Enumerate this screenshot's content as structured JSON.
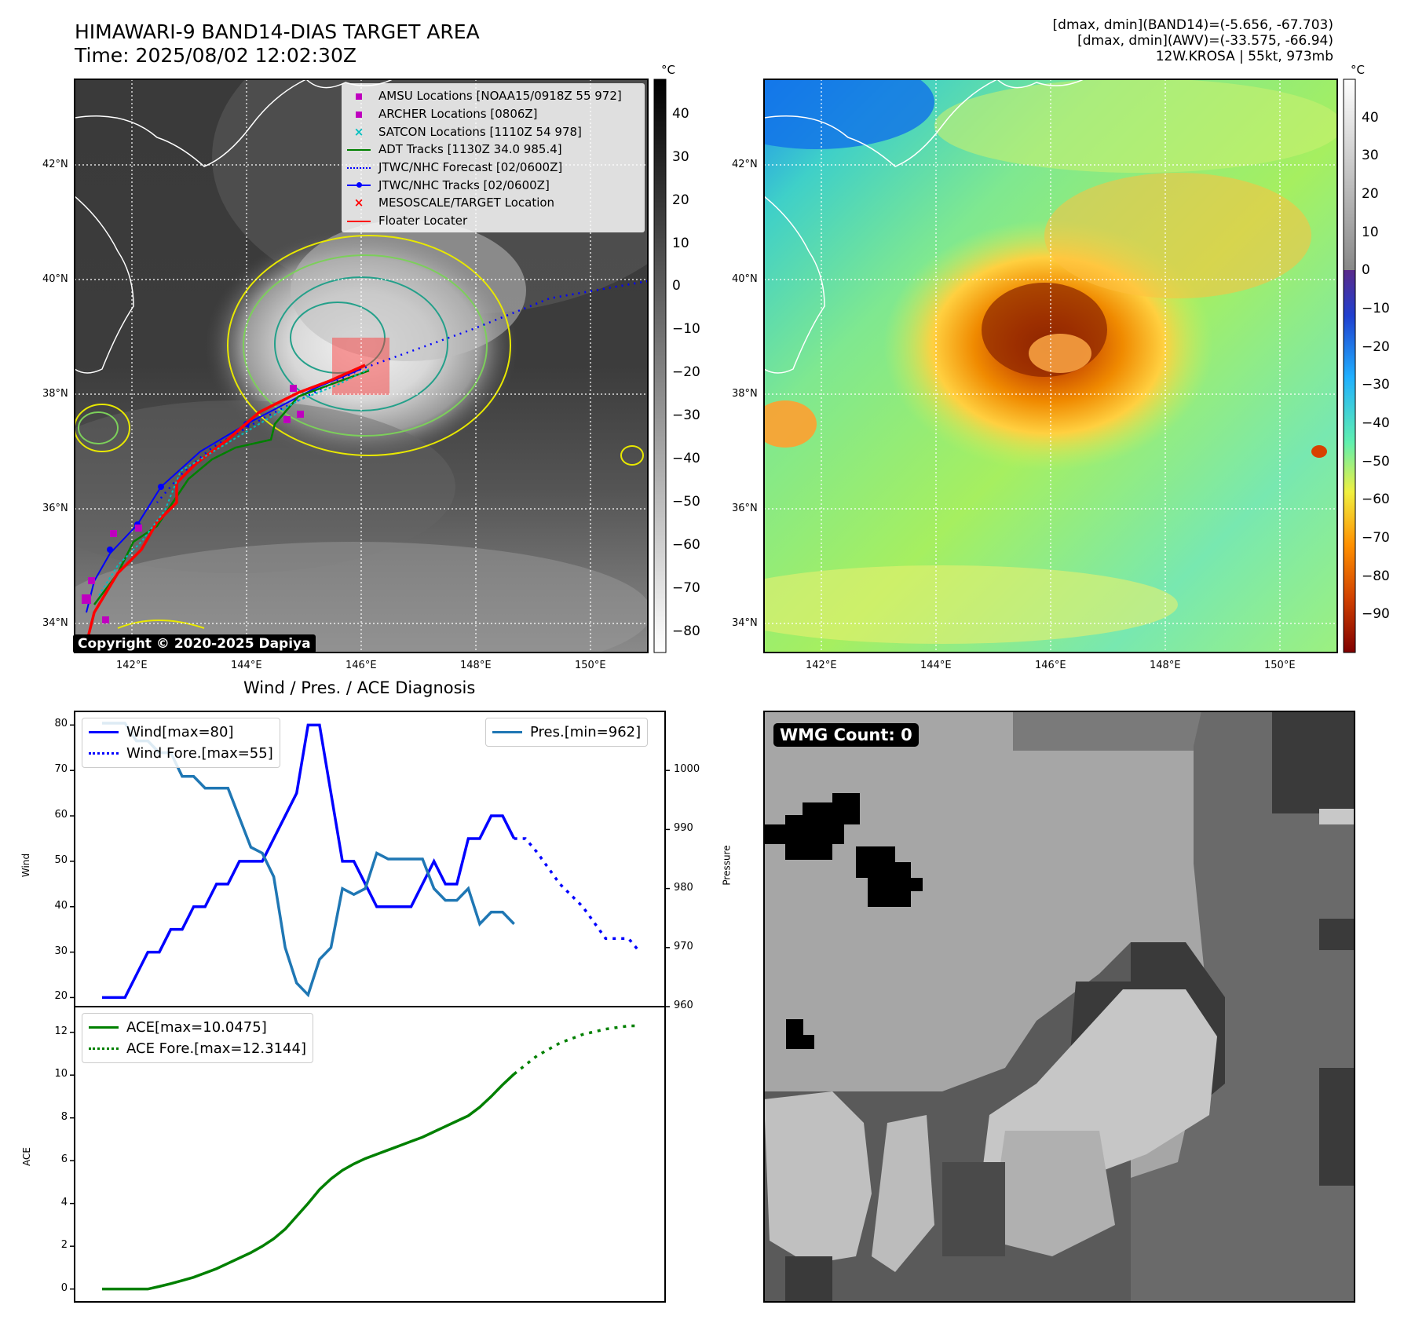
{
  "header": {
    "title": "HIMAWARI-9 BAND14-DIAS TARGET AREA",
    "time": "Time: 2025/08/02 12:02:30Z",
    "info_line1": "[dmax, dmin](BAND14)=(-5.656, -67.703)",
    "info_line2": "[dmax, dmin](AWV)=(-33.575, -66.94)",
    "info_line3": "12W.KROSA | 55kt, 973mb"
  },
  "maps": {
    "lat_labels": [
      "42°N",
      "40°N",
      "38°N",
      "36°N",
      "34°N"
    ],
    "lon_labels": [
      "142°E",
      "144°E",
      "146°E",
      "148°E",
      "150°E"
    ],
    "colorbar_unit": "°C",
    "left_colorbar_ticks": [
      "40",
      "30",
      "20",
      "10",
      "0",
      "−10",
      "−20",
      "−30",
      "−40",
      "−50",
      "−60",
      "−70",
      "−80"
    ],
    "right_colorbar_ticks": [
      "40",
      "30",
      "20",
      "10",
      "0",
      "−10",
      "−20",
      "−30",
      "−40",
      "−50",
      "−60",
      "−70",
      "−80",
      "−90"
    ],
    "copyright": "Copyright © 2020-2025 Dapiya",
    "legend": [
      {
        "label": "AMSU Locations [NOAA15/0918Z 55 972]",
        "color": "#bf00bf",
        "symbol": "square"
      },
      {
        "label": "ARCHER Locations [0806Z]",
        "color": "#bf00bf",
        "symbol": "square"
      },
      {
        "label": "SATCON Locations [1110Z 54 978]",
        "color": "#00bfbf",
        "symbol": "x"
      },
      {
        "label": "ADT Tracks [1130Z 34.0 985.4]",
        "color": "#008000",
        "symbol": "line"
      },
      {
        "label": "JTWC/NHC Forecast [02/0600Z]",
        "color": "#0000ff",
        "symbol": "dotted"
      },
      {
        "label": "JTWC/NHC Tracks [02/0600Z]",
        "color": "#0000ff",
        "symbol": "line-dot"
      },
      {
        "label": "MESOSCALE/TARGET Location",
        "color": "#ff0000",
        "symbol": "x"
      },
      {
        "label": "Floater Locater",
        "color": "#ff0000",
        "symbol": "line"
      }
    ],
    "wmg_count": "WMG Count: 0"
  },
  "chart_data": [
    {
      "type": "line",
      "title": "Wind / Pres. / ACE Diagnosis",
      "ylabel": "Wind",
      "y2label": "Pressure",
      "ylim": [
        18,
        83
      ],
      "y2lim": [
        960,
        1010
      ],
      "yticks": [
        20,
        30,
        40,
        50,
        60,
        70,
        80
      ],
      "y2ticks": [
        960,
        970,
        980,
        990,
        1000
      ],
      "series": [
        {
          "name": "Wind[max=80]",
          "color": "#0000ff",
          "style": "solid",
          "x": [
            0,
            1,
            2,
            3,
            4,
            5,
            6,
            7,
            8,
            9,
            10,
            11,
            12,
            13,
            14,
            15,
            16,
            17,
            18,
            19,
            20,
            21,
            22,
            23,
            24,
            25,
            26,
            27,
            28,
            29,
            30,
            31,
            32,
            33,
            34,
            35,
            36
          ],
          "values": [
            20,
            20,
            20,
            25,
            30,
            30,
            35,
            35,
            40,
            40,
            45,
            45,
            50,
            50,
            50,
            55,
            60,
            65,
            80,
            80,
            65,
            50,
            50,
            45,
            40,
            40,
            40,
            40,
            45,
            50,
            45,
            45,
            55,
            55,
            60,
            60,
            55
          ]
        },
        {
          "name": "Wind Fore.[max=55]",
          "color": "#0000ff",
          "style": "dotted",
          "x": [
            36,
            37,
            38,
            40,
            42,
            44,
            46,
            47
          ],
          "values": [
            55,
            55,
            52,
            45,
            40,
            33,
            33,
            30
          ]
        },
        {
          "name": "Pres.[min=962]",
          "color": "#1f77b4",
          "style": "solid",
          "axis": "right",
          "x": [
            0,
            1,
            2,
            3,
            4,
            5,
            6,
            7,
            8,
            9,
            10,
            11,
            12,
            13,
            14,
            15,
            16,
            17,
            18,
            19,
            20,
            21,
            22,
            23,
            24,
            25,
            26,
            27,
            28,
            29,
            30,
            31,
            32,
            33,
            34,
            35,
            36
          ],
          "values": [
            1008,
            1008,
            1008,
            1005,
            1005,
            1003,
            1003,
            999,
            999,
            997,
            997,
            997,
            992,
            987,
            986,
            982,
            970,
            964,
            962,
            968,
            970,
            980,
            979,
            980,
            986,
            985,
            985,
            985,
            985,
            980,
            978,
            978,
            980,
            974,
            976,
            976,
            974
          ]
        }
      ],
      "legend": [
        "Wind[max=80]",
        "Wind Fore.[max=55]",
        "Pres.[min=962]"
      ]
    },
    {
      "type": "line",
      "ylabel": "ACE",
      "ylim": [
        -0.6,
        13.2
      ],
      "yticks": [
        0,
        2,
        4,
        6,
        8,
        10,
        12
      ],
      "series": [
        {
          "name": "ACE[max=10.0475]",
          "color": "#008000",
          "style": "solid",
          "x": [
            0,
            1,
            2,
            3,
            4,
            5,
            6,
            7,
            8,
            9,
            10,
            11,
            12,
            13,
            14,
            15,
            16,
            17,
            18,
            19,
            20,
            21,
            22,
            23,
            24,
            25,
            26,
            27,
            28,
            29,
            30,
            31,
            32,
            33,
            34,
            35,
            36
          ],
          "values": [
            0,
            0,
            0,
            0,
            0,
            0.12,
            0.25,
            0.4,
            0.55,
            0.75,
            0.95,
            1.2,
            1.45,
            1.7,
            2.0,
            2.35,
            2.8,
            3.4,
            4.0,
            4.65,
            5.15,
            5.55,
            5.85,
            6.1,
            6.3,
            6.5,
            6.7,
            6.9,
            7.1,
            7.35,
            7.6,
            7.85,
            8.1,
            8.5,
            9.0,
            9.55,
            10.05
          ]
        },
        {
          "name": "ACE Fore.[max=12.3144]",
          "color": "#008000",
          "style": "dotted",
          "x": [
            36,
            38,
            40,
            42,
            44,
            46,
            47
          ],
          "values": [
            10.05,
            10.9,
            11.5,
            11.9,
            12.15,
            12.3,
            12.3
          ]
        }
      ],
      "legend": [
        "ACE[max=10.0475]",
        "ACE Fore.[max=12.3144]"
      ]
    }
  ]
}
